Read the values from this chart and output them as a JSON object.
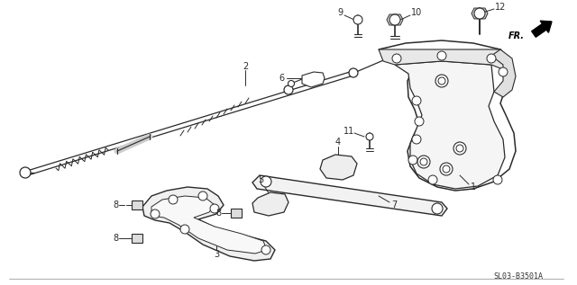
{
  "bg_color": "#ffffff",
  "line_color": "#2a2a2a",
  "fig_width": 6.4,
  "fig_height": 3.17,
  "dpi": 100,
  "diagram_code": "SL03-B3501A"
}
